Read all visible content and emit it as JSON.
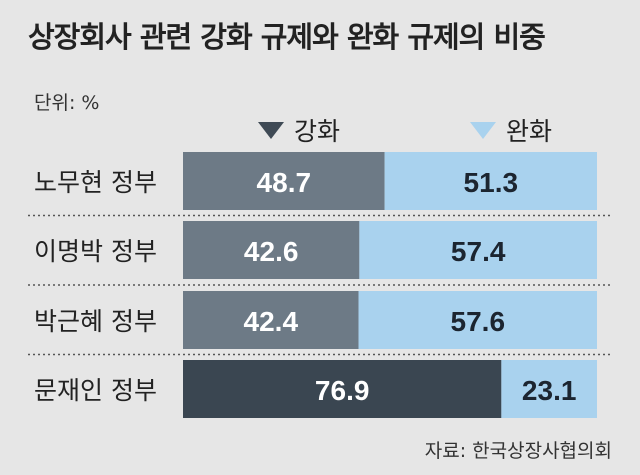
{
  "chart_data": {
    "type": "bar",
    "stacked": true,
    "orientation": "horizontal",
    "title": "상장회사 관련 강화 규제와 완화 규제의 비중",
    "unit_label": "단위: %",
    "categories": [
      "노무현 정부",
      "이명박 정부",
      "박근혜 정부",
      "문재인 정부"
    ],
    "series": [
      {
        "name": "강화",
        "values": [
          48.7,
          42.6,
          42.4,
          76.9
        ]
      },
      {
        "name": "완화",
        "values": [
          51.3,
          57.4,
          57.6,
          23.1
        ]
      }
    ],
    "xlim": [
      0,
      100
    ],
    "legend_position": "top",
    "source": "자료: 한국상장사협의회",
    "colors": {
      "strengthen": "#6d7a86",
      "strengthen_highlight": "#3a4651",
      "ease": "#a9d2ee",
      "legend_strengthen": "#3f4a55",
      "ease_legend": "#a9d2ee"
    },
    "highlighted_category": "문재인 정부"
  }
}
